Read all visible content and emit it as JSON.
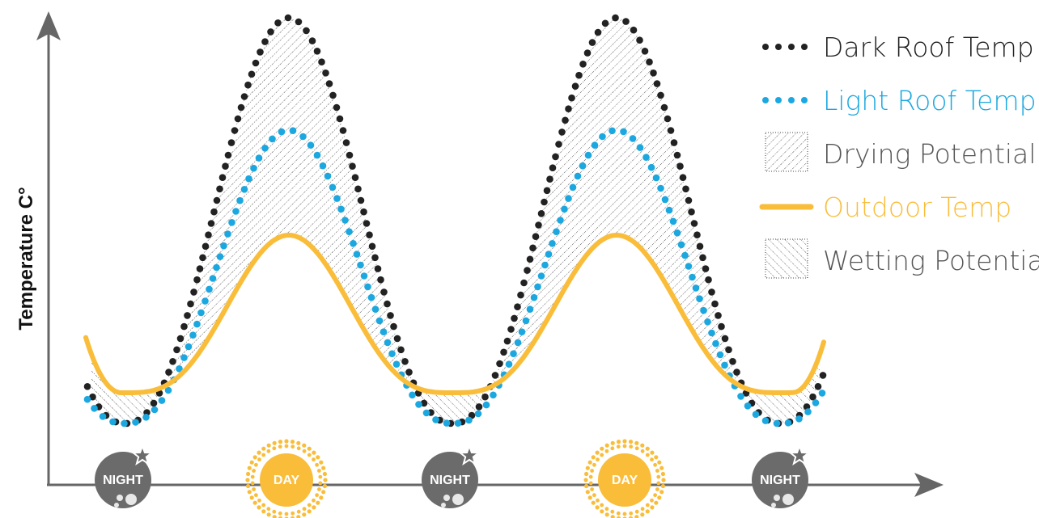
{
  "axes": {
    "y_label": "Temperature C°"
  },
  "legend": {
    "items": [
      {
        "label": "Dark Roof Temp",
        "color": "#222222",
        "marker": "dots-black"
      },
      {
        "label": "Light Roof Temp",
        "color": "#1ba8e0",
        "marker": "dots-blue"
      },
      {
        "label": "Drying Potential",
        "color": "#555555",
        "marker": "hatch-backslash"
      },
      {
        "label": "Outdoor Temp",
        "color": "#f9bd3a",
        "marker": "solid-line-yellow"
      },
      {
        "label": "Wetting Potential",
        "color": "#555555",
        "marker": "hatch-slash"
      }
    ]
  },
  "time_badges": [
    {
      "label": "NIGHT",
      "kind": "night",
      "icon": "moon-star-icon"
    },
    {
      "label": "DAY",
      "kind": "day",
      "icon": "sun-icon"
    },
    {
      "label": "NIGHT",
      "kind": "night",
      "icon": "moon-star-icon"
    },
    {
      "label": "DAY",
      "kind": "day",
      "icon": "sun-icon"
    },
    {
      "label": "NIGHT",
      "kind": "night",
      "icon": "moon-star-icon"
    }
  ],
  "colors": {
    "axis": "#666666",
    "dark_roof": "#222222",
    "light_roof": "#1ba8e0",
    "outdoor": "#f9bd3a",
    "night_badge": "#6b6b6b",
    "day_badge": "#f9bd3a"
  }
}
